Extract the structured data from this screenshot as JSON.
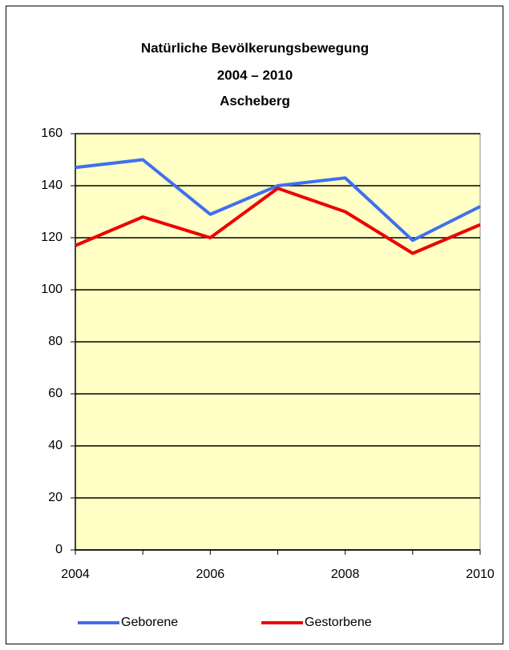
{
  "chart_data": {
    "type": "line",
    "title": [
      "Natürliche Bevölkerungsbewegung",
      "2004 – 2010",
      "Ascheberg"
    ],
    "categories": [
      "2004",
      null,
      "2006",
      null,
      "2008",
      null,
      "2010"
    ],
    "series": [
      {
        "name": "Geborene",
        "color": "#3f6fef",
        "values": [
          147,
          150,
          129,
          140,
          143,
          119,
          132
        ]
      },
      {
        "name": "Gestorbene",
        "color": "#ee0000",
        "values": [
          117,
          128,
          120,
          139,
          130,
          114,
          125
        ]
      }
    ],
    "ylim": [
      0,
      160
    ],
    "yticks": [
      0,
      20,
      40,
      60,
      80,
      100,
      120,
      140,
      160
    ],
    "grid": true,
    "plot_background": "#ffffc6",
    "legend": "bottom"
  }
}
